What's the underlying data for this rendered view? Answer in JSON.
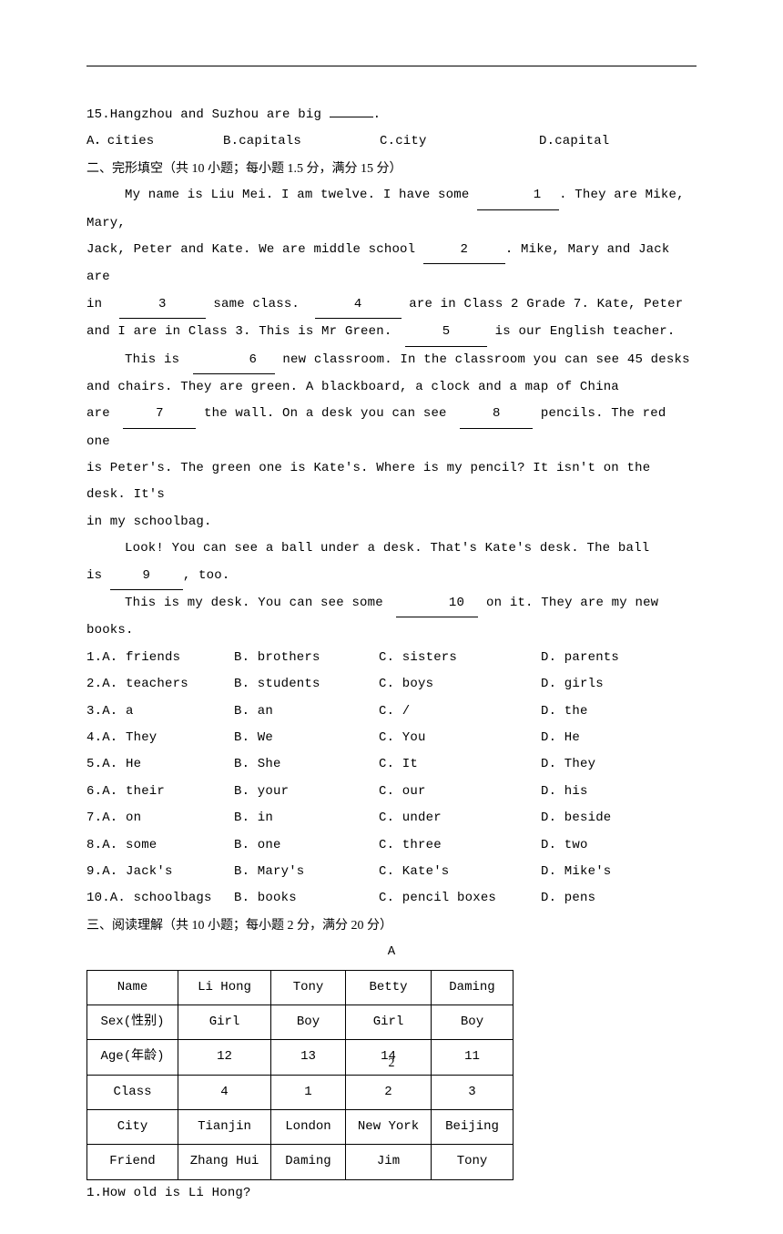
{
  "q15": {
    "text_pre": "15.Hangzhou and Suzhou are big ",
    "text_post": ".",
    "a": "A．cities",
    "b": "B.capitals",
    "c": "C.city",
    "d": "D.capital"
  },
  "section2_title": "二、完形填空（共 10 小题；每小题 1.5 分，满分 15 分）",
  "passage": {
    "p1a": "My name is Liu Mei. I am twelve. I have some ",
    "p1b": ". They are Mike, Mary,",
    "p2a": "Jack, Peter and Kate. We are middle school ",
    "p2b": ". Mike, Mary and Jack are",
    "p3a": "in ",
    "p3b": " same class. ",
    "p3c": " are in Class 2 Grade 7. Kate, Peter",
    "p4a": "and I are in Class 3. This is Mr Green. ",
    "p4b": " is our English teacher.",
    "p5a": "This is ",
    "p5b": " new classroom. In the classroom you can see 45 desks",
    "p6": "and chairs. They are green. A blackboard, a clock and a map of China",
    "p7a": "are ",
    "p7b": " the wall. On a desk you can see ",
    "p7c": " pencils. The red one",
    "p8": "is Peter's. The green one is Kate's. Where is my pencil? It isn't on the desk. It's",
    "p9": "in my schoolbag.",
    "p10": "Look! You can see a ball under a desk. That's Kate's desk. The ball",
    "p11a": "is ",
    "p11b": ", too.",
    "p12a": "This is my desk. You can see some ",
    "p12b": " on it. They are my new books.",
    "blank1": "1",
    "blank2": "2",
    "blank3": "3",
    "blank4": "4",
    "blank5": "5",
    "blank6": "6",
    "blank7": "7",
    "blank8": "8",
    "blank9": "9",
    "blank10": "10"
  },
  "cloze_options": [
    {
      "n": "1.",
      "a": "A. friends",
      "b": "B. brothers",
      "c": "C. sisters",
      "d": "D. parents"
    },
    {
      "n": "2.",
      "a": "A. teachers",
      "b": "B. students",
      "c": "C. boys",
      "d": "D. girls"
    },
    {
      "n": "3.",
      "a": "A. a",
      "b": "B. an",
      "c": "C. /",
      "d": "D. the"
    },
    {
      "n": "4.",
      "a": "A. They",
      "b": "B. We",
      "c": "C. You",
      "d": "D. He"
    },
    {
      "n": "5.",
      "a": "A. He",
      "b": "B. She",
      "c": "C. It",
      "d": "D. They"
    },
    {
      "n": "6.",
      "a": "A. their",
      "b": "B. your",
      "c": "C. our",
      "d": "D. his"
    },
    {
      "n": "7.",
      "a": "A. on",
      "b": "B. in",
      "c": "C. under",
      "d": "D. beside"
    },
    {
      "n": "8.",
      "a": "A. some",
      "b": "B. one",
      "c": "C. three",
      "d": "D. two"
    },
    {
      "n": "9.",
      "a": "A. Jack's",
      "b": "B. Mary's",
      "c": "C. Kate's",
      "d": "D. Mike's"
    },
    {
      "n": "10.",
      "a": "A. schoolbags",
      "b": "B. books",
      "c": "C. pencil boxes",
      "d": "D. pens"
    }
  ],
  "section3_title": "三、阅读理解（共 10 小题；每小题 2 分，满分 20 分）",
  "passage_a_label": "A",
  "table": {
    "columns": [
      "Name",
      "Li Hong",
      "Tony",
      "Betty",
      "Daming"
    ],
    "rows": [
      [
        "Sex(性别)",
        "Girl",
        "Boy",
        "Girl",
        "Boy"
      ],
      [
        "Age(年龄)",
        "12",
        "13",
        "14",
        "11"
      ],
      [
        "Class",
        "4",
        "1",
        "2",
        "3"
      ],
      [
        "City",
        "Tianjin",
        "London",
        "New York",
        "Beijing"
      ],
      [
        "Friend",
        "Zhang Hui",
        "Daming",
        "Jim",
        "Tony"
      ]
    ]
  },
  "reading_q1": "1.How old is Li Hong?",
  "page_number": "2"
}
